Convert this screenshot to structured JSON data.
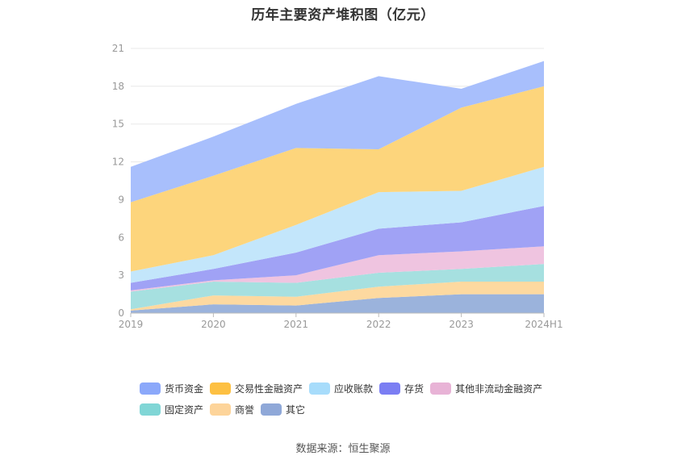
{
  "title": "历年主要资产堆积图（亿元）",
  "source": "数据来源：恒生聚源",
  "chart_data": {
    "type": "area",
    "stacked": true,
    "title": "历年主要资产堆积图（亿元）",
    "xlabel": "",
    "ylabel": "",
    "categories": [
      "2019",
      "2020",
      "2021",
      "2022",
      "2023",
      "2024H1"
    ],
    "ylim": [
      0,
      21
    ],
    "yticks": [
      0,
      3,
      6,
      9,
      12,
      15,
      18,
      21
    ],
    "grid": true,
    "legend_position": "bottom",
    "series": [
      {
        "name": "其它",
        "color": "#9bb3dc",
        "values": [
          0.2,
          0.7,
          0.6,
          1.2,
          1.5,
          1.5
        ]
      },
      {
        "name": "商誉",
        "color": "#fdd9a0",
        "values": [
          0.1,
          0.7,
          0.7,
          0.9,
          1.0,
          1.0
        ]
      },
      {
        "name": "固定资产",
        "color": "#a6e0e0",
        "values": [
          1.4,
          1.1,
          1.1,
          1.1,
          1.0,
          1.4
        ]
      },
      {
        "name": "其他非流动金融资产",
        "color": "#efc4e0",
        "values": [
          0.1,
          0.1,
          0.6,
          1.4,
          1.4,
          1.4
        ]
      },
      {
        "name": "存货",
        "color": "#a0a2f5",
        "values": [
          0.6,
          0.9,
          1.8,
          2.1,
          2.3,
          3.2
        ]
      },
      {
        "name": "应收账款",
        "color": "#c3e6fb",
        "values": [
          0.9,
          1.1,
          2.2,
          2.9,
          2.5,
          3.1
        ]
      },
      {
        "name": "交易性金融资产",
        "color": "#fdd57c",
        "values": [
          5.5,
          6.3,
          6.1,
          3.4,
          6.6,
          6.4
        ]
      },
      {
        "name": "货币资金",
        "color": "#a8bffc",
        "values": [
          2.8,
          3.1,
          3.5,
          5.8,
          1.5,
          2.0
        ]
      }
    ]
  },
  "legend": {
    "items": [
      {
        "label": "货币资金",
        "color": "#8ba8fa"
      },
      {
        "label": "交易性金融资产",
        "color": "#fdc042"
      },
      {
        "label": "应收账款",
        "color": "#a7dcfb"
      },
      {
        "label": "存货",
        "color": "#7b7ef3"
      },
      {
        "label": "其他非流动金融资产",
        "color": "#e8b3d6"
      },
      {
        "label": "固定资产",
        "color": "#80d6d6"
      },
      {
        "label": "商誉",
        "color": "#fdd49a"
      },
      {
        "label": "其它",
        "color": "#8fa8d8"
      }
    ]
  }
}
